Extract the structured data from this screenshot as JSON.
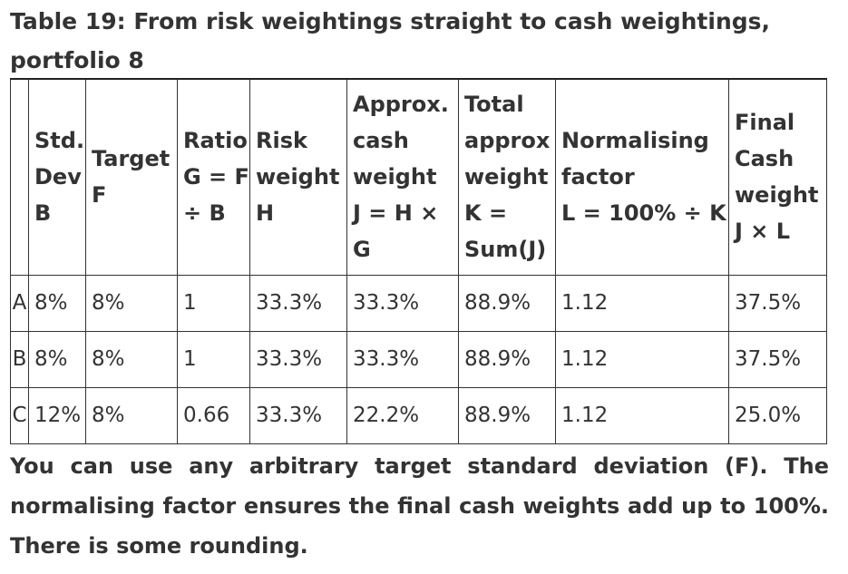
{
  "caption": "Table 19: From risk weightings straight to cash weightings, portfolio 8",
  "table": {
    "headers": [
      {
        "lines": [
          ""
        ]
      },
      {
        "lines": [
          "Std.",
          "Dev",
          "B"
        ]
      },
      {
        "lines": [
          "Target",
          "F"
        ]
      },
      {
        "lines": [
          "Ratio",
          "G = F",
          "÷ B"
        ]
      },
      {
        "lines": [
          "Risk",
          "weight",
          "H"
        ]
      },
      {
        "lines": [
          "Approx.",
          "cash",
          "weight",
          "J = H × G"
        ]
      },
      {
        "lines": [
          "Total",
          "approx",
          "weight",
          "K =",
          "Sum(J)"
        ]
      },
      {
        "lines": [
          "Normalising",
          "factor",
          "L = 100% ÷ K"
        ]
      },
      {
        "lines": [
          "Final",
          "Cash",
          "weight",
          "J × L"
        ]
      }
    ],
    "rows": [
      [
        "A",
        "8%",
        "8%",
        "1",
        "33.3%",
        "33.3%",
        "88.9%",
        "1.12",
        "37.5%"
      ],
      [
        "B",
        "8%",
        "8%",
        "1",
        "33.3%",
        "33.3%",
        "88.9%",
        "1.12",
        "37.5%"
      ],
      [
        "C",
        "12%",
        "8%",
        "0.66",
        "33.3%",
        "22.2%",
        "88.9%",
        "1.12",
        "25.0%"
      ]
    ]
  },
  "footnote": {
    "line1": "You can use any arbitrary target standard deviation (F). The",
    "line2": "normalising factor ensures the final cash weights add up to 100%.",
    "line3": "There is some rounding."
  }
}
